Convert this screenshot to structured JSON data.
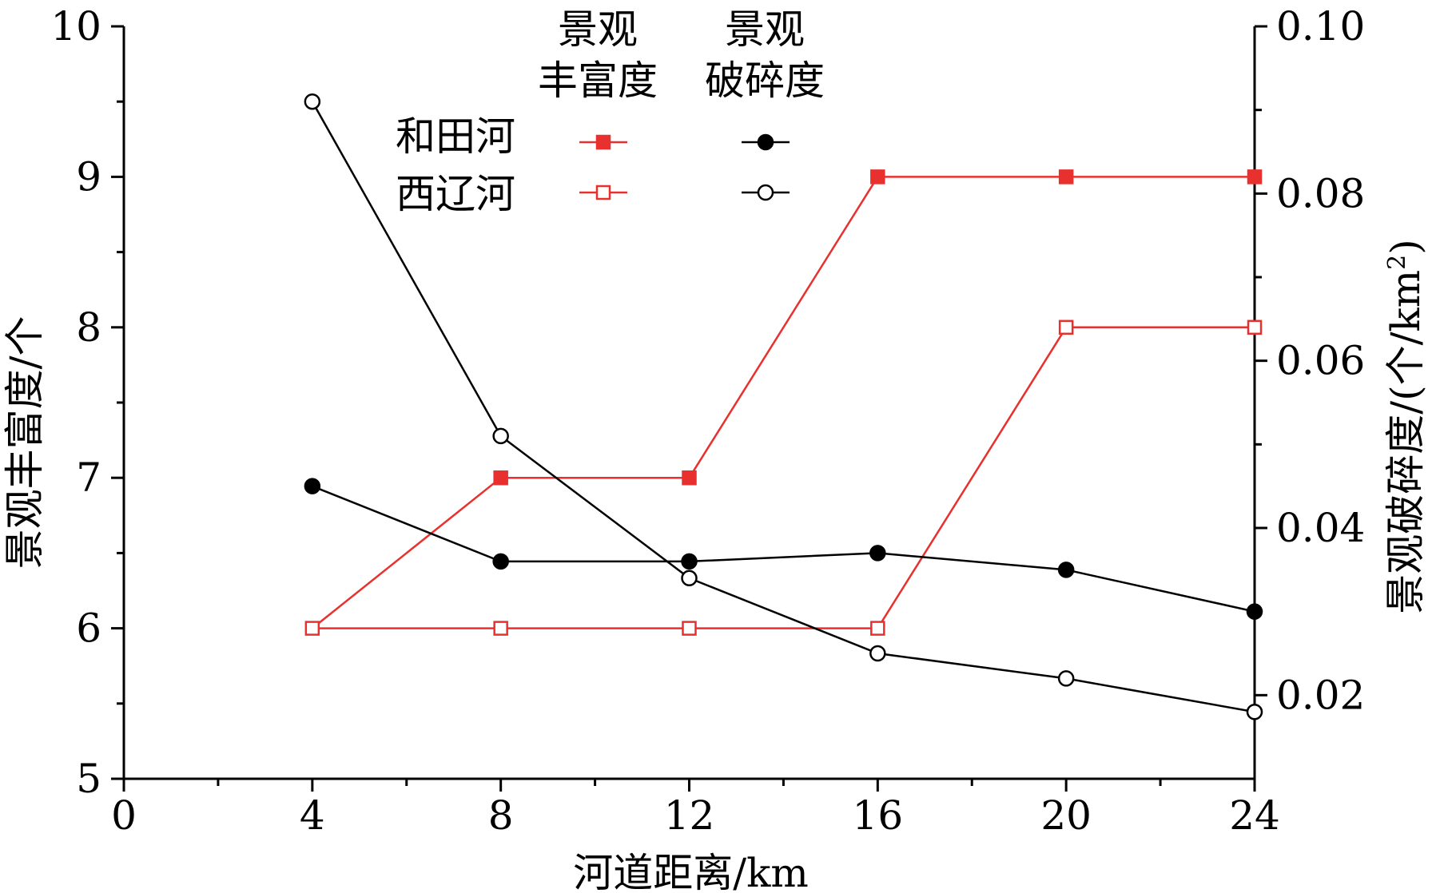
{
  "chart_data": {
    "type": "line",
    "xlabel": "河道距离/km",
    "ylabel_left": "景观丰富度/个",
    "ylabel_right_prefix": "景观破碎度/(个/km",
    "ylabel_right_sup": "2",
    "ylabel_right_suffix": ")",
    "xlim": [
      0,
      24
    ],
    "xticks": [
      0,
      4,
      8,
      12,
      16,
      20,
      24
    ],
    "ylim_left": [
      5,
      10
    ],
    "yticks_left": [
      5,
      6,
      7,
      8,
      9,
      10
    ],
    "ylim_right": [
      0.01,
      0.1
    ],
    "yticks_right": [
      "0.02",
      "0.04",
      "0.06",
      "0.08",
      "0.10"
    ],
    "legend": {
      "col1_line1": "景观",
      "col1_line2": "丰富度",
      "col2_line1": "景观",
      "col2_line2": "破碎度",
      "row1": "和田河",
      "row2": "西辽河"
    },
    "series": [
      {
        "key": "hetian_richness",
        "axis": "left",
        "color": "#e8302e",
        "marker": "square",
        "filled": true,
        "x": [
          8,
          12,
          16,
          20,
          24
        ],
        "y": [
          7,
          7,
          9,
          9,
          9
        ]
      },
      {
        "key": "xiliao_richness",
        "axis": "left",
        "color": "#e8302e",
        "marker": "square",
        "filled": false,
        "x": [
          4,
          8,
          12,
          16,
          20,
          24
        ],
        "y": [
          6,
          6,
          6,
          6,
          8,
          8
        ]
      },
      {
        "key": "hetian_fragmentation",
        "axis": "right",
        "color": "#000000",
        "marker": "circle",
        "filled": true,
        "x": [
          4,
          8,
          12,
          16,
          20,
          24
        ],
        "y": [
          0.045,
          0.036,
          0.036,
          0.037,
          0.035,
          0.03
        ]
      },
      {
        "key": "xiliao_fragmentation",
        "axis": "right",
        "color": "#000000",
        "marker": "circle",
        "filled": false,
        "x": [
          4,
          8,
          12,
          16,
          20,
          24
        ],
        "y": [
          0.091,
          0.051,
          0.034,
          0.025,
          0.022,
          0.018
        ]
      }
    ],
    "extra_segments": [
      {
        "axis": "left",
        "color": "#e8302e",
        "from": [
          4,
          6
        ],
        "to": [
          8,
          7
        ]
      }
    ]
  }
}
